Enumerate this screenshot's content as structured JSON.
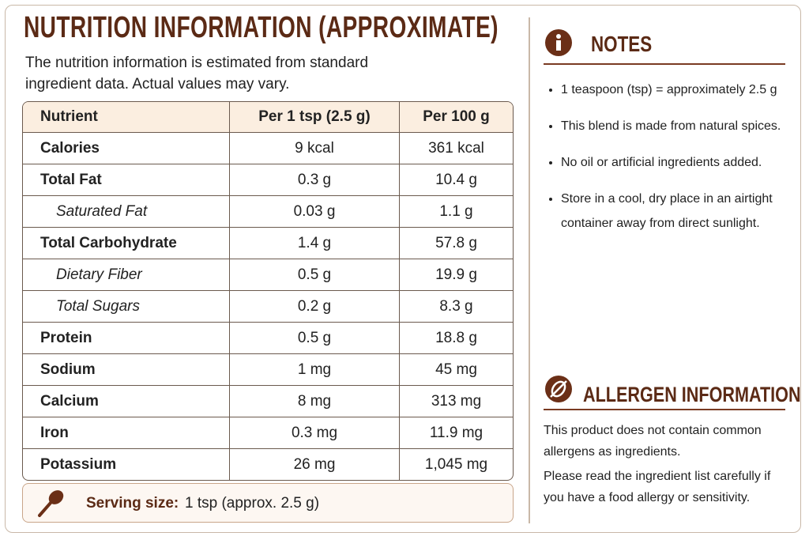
{
  "header": {
    "title": "NUTRITION INFORMATION (APPROXIMATE)",
    "intro": "The nutrition information is estimated from standard ingredient data. Actual values may vary."
  },
  "table": {
    "headers": [
      "Nutrient",
      "Per 1 tsp (2.5 g)",
      "Per 100 g"
    ],
    "rows": [
      [
        "Calories",
        "9 kcal",
        "361 kcal"
      ],
      [
        "Total Fat",
        "0.3 g",
        "10.4 g"
      ],
      [
        "Saturated Fat",
        "0.03 g",
        "1.1 g"
      ],
      [
        "Total Carbohydrate",
        "1.4 g",
        "57.8 g"
      ],
      [
        "Dietary Fiber",
        "0.5 g",
        "19.9 g"
      ],
      [
        "Total Sugars",
        "0.2 g",
        "8.3 g"
      ],
      [
        "Protein",
        "0.5 g",
        "18.8 g"
      ],
      [
        "Sodium",
        "1 mg",
        "45 mg"
      ],
      [
        "Calcium",
        "8 mg",
        "313 mg"
      ],
      [
        "Iron",
        "0.3 mg",
        "11.9 mg"
      ],
      [
        "Potassium",
        "26 mg",
        "1,045 mg"
      ]
    ]
  },
  "serving": {
    "label": "Serving size:",
    "value": "1 tsp (approx. 2.5 g)"
  },
  "notes": {
    "title": "NOTES",
    "items": [
      "1 teaspoon (tsp) = approximately 2.5 g",
      "This blend is made from natural spices.",
      "No oil or artificial ingredients added.",
      "Store in a cool, dry place in an airtight container away from direct sunlight."
    ]
  },
  "allergen": {
    "title": "ALLERGEN INFORMATION",
    "paragraphs": [
      "This product does not contain common allergens as ingredients.",
      "Please read the ingredient list carefully if you have a food allergy or sensitivity."
    ]
  }
}
